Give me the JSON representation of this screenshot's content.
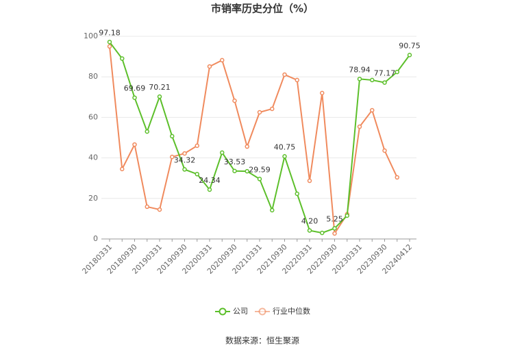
{
  "chart_data": {
    "type": "line",
    "title": "市销率历史分位（%）",
    "categories": [
      "20180331",
      null,
      "20180930",
      null,
      "20190331",
      null,
      "20190930",
      null,
      "20200331",
      null,
      "20200930",
      null,
      "20210331",
      null,
      "20210930",
      null,
      "20220331",
      null,
      "20220930",
      null,
      "20230331",
      null,
      "20230930",
      null,
      "20240412"
    ],
    "series": [
      {
        "name": "公司",
        "color": "#5cbf2a",
        "values": [
          97.18,
          89,
          69.69,
          53,
          70.21,
          50.7,
          34.32,
          32,
          24.34,
          42.6,
          33.53,
          33.4,
          29.59,
          14.2,
          40.75,
          22.3,
          4.2,
          3.0,
          5.25,
          11.5,
          78.94,
          78.4,
          77.17,
          82.4,
          90.75
        ],
        "value_labels": [
          "97.18",
          null,
          "69.69",
          null,
          "70.21",
          null,
          "34.32",
          null,
          "24.34",
          null,
          "33.53",
          null,
          "29.59",
          null,
          "40.75",
          null,
          "4.20",
          null,
          "5.25",
          null,
          "78.94",
          null,
          "77.17",
          null,
          "90.75"
        ]
      },
      {
        "name": "行业中位数",
        "color": "#f08a5d",
        "values": [
          95,
          34.5,
          46.6,
          15.9,
          14.5,
          40.5,
          42.2,
          46,
          85.1,
          88.2,
          68.2,
          45.6,
          62.5,
          64.2,
          81.1,
          78.4,
          28.7,
          72,
          2.7,
          12.2,
          55.4,
          63.5,
          43.6,
          30.4,
          null
        ]
      }
    ],
    "ylim": [
      0,
      100
    ],
    "yticks": [
      0,
      20,
      40,
      60,
      80,
      100
    ],
    "grid": true,
    "legend": "bottom",
    "source": "数据来源：恒生聚源"
  }
}
